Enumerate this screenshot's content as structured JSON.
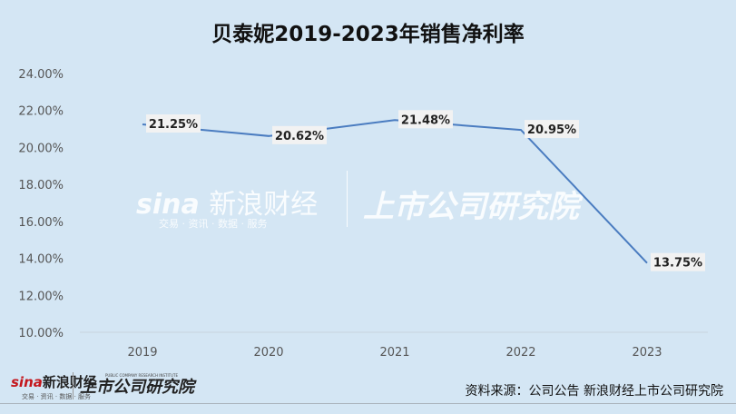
{
  "chart_data": {
    "type": "line",
    "title": "贝泰妮2019-2023年销售净利率",
    "categories": [
      "2019",
      "2020",
      "2021",
      "2022",
      "2023"
    ],
    "values": [
      21.25,
      20.62,
      21.48,
      20.95,
      13.75
    ],
    "data_labels": [
      "21.25%",
      "20.62%",
      "21.48%",
      "20.95%",
      "13.75%"
    ],
    "ylim": [
      10,
      24
    ],
    "yticks": [
      "10.00%",
      "12.00%",
      "14.00%",
      "16.00%",
      "18.00%",
      "20.00%",
      "22.00%",
      "24.00%"
    ],
    "ytick_values": [
      10,
      12,
      14,
      16,
      18,
      20,
      22,
      24
    ],
    "xlabel": "",
    "ylabel": "",
    "grid": false,
    "line_color": "#4a7cc0"
  },
  "watermark": {
    "sina": "sina",
    "sina_cn": "新浪财经",
    "sina_sub": "交易 · 资讯 · 数据 · 服务",
    "institute": "上市公司研究院",
    "institute_en": "PUBLIC COMPANY RESEARCH INSTITUTE"
  },
  "footer": {
    "source": "资料来源：公司公告 新浪财经上市公司研究院"
  }
}
